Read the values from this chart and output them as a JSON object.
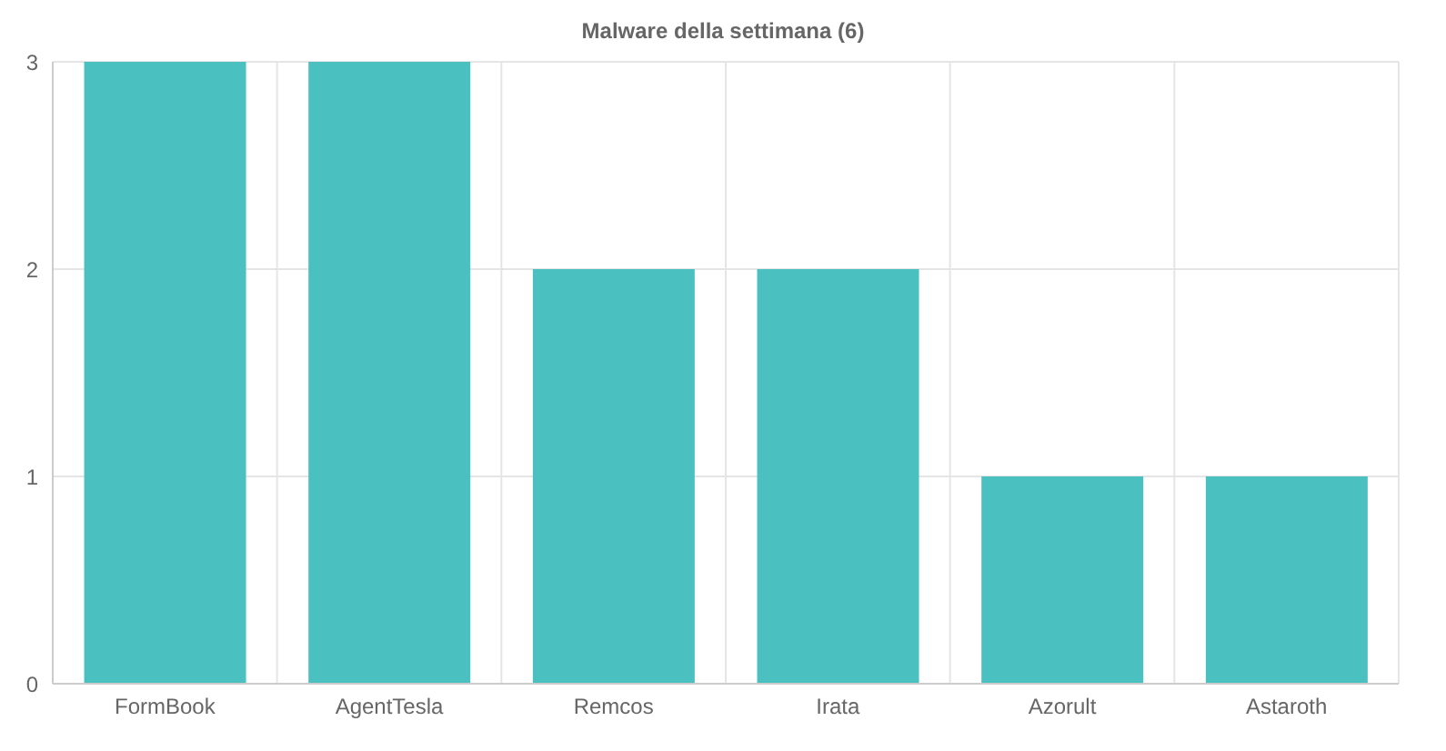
{
  "chart_data": {
    "type": "bar",
    "title": "Malware della settimana (6)",
    "categories": [
      "FormBook",
      "AgentTesla",
      "Remcos",
      "Irata",
      "Azorult",
      "Astaroth"
    ],
    "values": [
      3,
      3,
      2,
      2,
      1,
      1
    ],
    "color": "#4bc0c0",
    "ylim": [
      0,
      3
    ],
    "yticks": [
      0,
      1,
      2,
      3
    ],
    "grid": true,
    "legend": false
  }
}
